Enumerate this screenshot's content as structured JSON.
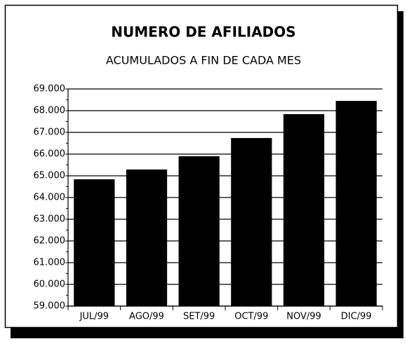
{
  "chart_data": {
    "type": "bar",
    "title": "NUMERO DE AFILIADOS",
    "subtitle": "ACUMULADOS A FIN DE CADA MES",
    "categories": [
      "JUL/99",
      "AGO/99",
      "SET/99",
      "OCT/99",
      "NOV/99",
      "DIC/99"
    ],
    "values": [
      64840,
      65290,
      65900,
      66740,
      67840,
      68450
    ],
    "color": "#000000",
    "ylim": [
      59000,
      69000
    ],
    "yticks": [
      {
        "value": 59000,
        "label": "59.000"
      },
      {
        "value": 60000,
        "label": "60.000"
      },
      {
        "value": 61000,
        "label": "61.000"
      },
      {
        "value": 62000,
        "label": "62.000"
      },
      {
        "value": 63000,
        "label": "63.000"
      },
      {
        "value": 64000,
        "label": "64.000"
      },
      {
        "value": 65000,
        "label": "65.000"
      },
      {
        "value": 66000,
        "label": "66.000"
      },
      {
        "value": 67000,
        "label": "67.000"
      },
      {
        "value": 68000,
        "label": "68.000"
      },
      {
        "value": 69000,
        "label": "69.000"
      }
    ],
    "grid": true
  }
}
